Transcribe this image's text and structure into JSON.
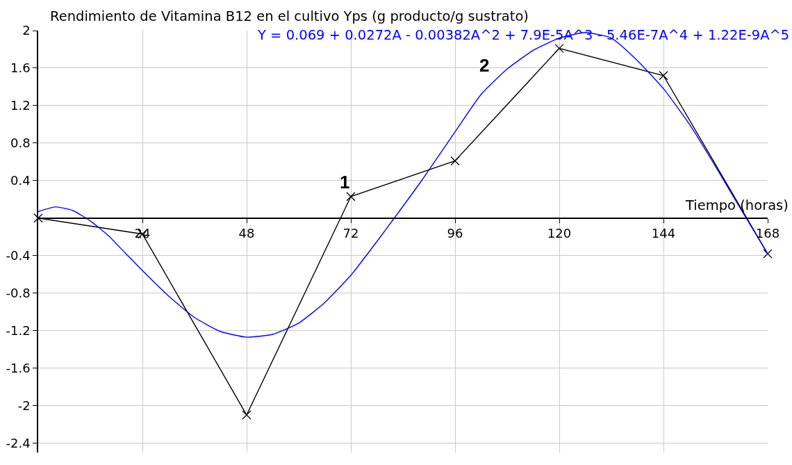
{
  "chart_data": {
    "type": "line",
    "xlabel": "Tiempo (horas)",
    "ylabel": "Rendimiento de Vitamina B12 en el cultivo Yps (g producto/g sustrato)",
    "x": [
      0,
      24,
      48,
      72,
      96,
      120,
      144,
      168
    ],
    "xlim": [
      0,
      168
    ],
    "xticks": [
      24,
      48,
      72,
      96,
      120,
      144,
      168
    ],
    "ylim": [
      -2.5,
      2
    ],
    "yticks": [
      2,
      1.6,
      1.2,
      0.8,
      0.4,
      -0.4,
      -0.8,
      -1.2,
      -1.6,
      -2,
      -2.4
    ],
    "grid": true,
    "legend": false,
    "line_style": "solid",
    "series": [
      {
        "color": "#000000",
        "marker": "cross",
        "values": [
          0,
          -0.17,
          -2.1,
          0.23,
          0.61,
          1.81,
          1.52,
          -0.38
        ]
      },
      {
        "name": "Y = 0.069 + 0.0272A - 0.00382A^2 + 7.9E-5A^3 - 5.46E-7A^4 + 1.22E-9A^5",
        "color": "#0000ff",
        "marker": "none",
        "x": [
          0,
          4,
          8,
          12,
          16,
          20,
          24,
          30,
          36,
          42,
          48,
          54,
          60,
          66,
          72,
          78,
          82,
          88,
          96,
          102,
          108,
          114,
          120,
          126,
          132,
          138,
          144,
          150,
          156,
          162,
          168
        ],
        "values": [
          0.07,
          0.12,
          0.08,
          -0.03,
          -0.18,
          -0.37,
          -0.56,
          -0.83,
          -1.06,
          -1.21,
          -1.27,
          -1.24,
          -1.12,
          -0.9,
          -0.61,
          -0.25,
          0,
          0.38,
          0.92,
          1.32,
          1.59,
          1.79,
          1.92,
          1.98,
          1.92,
          1.68,
          1.38,
          1.0,
          0.55,
          0.08,
          -0.38
        ]
      }
    ],
    "annotations": [
      "1",
      "2"
    ]
  }
}
